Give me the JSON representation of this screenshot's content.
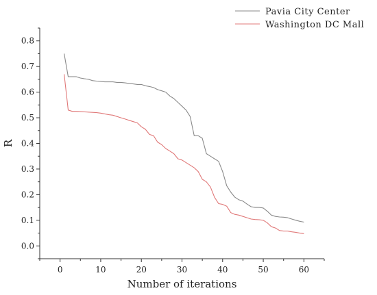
{
  "chart_data": {
    "type": "line",
    "xlabel": "Number of iterations",
    "ylabel": "R",
    "xlim": [
      -5,
      65
    ],
    "ylim": [
      -0.05,
      0.85
    ],
    "x_ticks": [
      0,
      10,
      20,
      30,
      40,
      50,
      60
    ],
    "y_ticks": [
      0.0,
      0.1,
      0.2,
      0.3,
      0.4,
      0.5,
      0.6,
      0.7,
      0.8
    ],
    "y_tick_labels": [
      "0.0",
      "0.1",
      "0.2",
      "0.3",
      "0.4",
      "0.5",
      "0.6",
      "0.7",
      "0.8"
    ],
    "grid": false,
    "legend_position": "top-right, outside plot",
    "series": [
      {
        "name": "Pavia City Center",
        "color": "#8a8a8a",
        "points": [
          [
            1,
            0.75
          ],
          [
            2,
            0.66
          ],
          [
            3,
            0.66
          ],
          [
            4,
            0.66
          ],
          [
            5,
            0.655
          ],
          [
            6,
            0.652
          ],
          [
            7,
            0.65
          ],
          [
            8,
            0.645
          ],
          [
            9,
            0.643
          ],
          [
            10,
            0.642
          ],
          [
            11,
            0.64
          ],
          [
            12,
            0.64
          ],
          [
            13,
            0.64
          ],
          [
            14,
            0.638
          ],
          [
            15,
            0.638
          ],
          [
            16,
            0.636
          ],
          [
            17,
            0.634
          ],
          [
            18,
            0.632
          ],
          [
            19,
            0.63
          ],
          [
            20,
            0.63
          ],
          [
            21,
            0.625
          ],
          [
            22,
            0.622
          ],
          [
            23,
            0.618
          ],
          [
            24,
            0.61
          ],
          [
            25,
            0.605
          ],
          [
            26,
            0.6
          ],
          [
            27,
            0.585
          ],
          [
            28,
            0.575
          ],
          [
            29,
            0.56
          ],
          [
            30,
            0.545
          ],
          [
            31,
            0.53
          ],
          [
            32,
            0.505
          ],
          [
            33,
            0.43
          ],
          [
            34,
            0.43
          ],
          [
            35,
            0.42
          ],
          [
            36,
            0.36
          ],
          [
            37,
            0.35
          ],
          [
            38,
            0.34
          ],
          [
            39,
            0.33
          ],
          [
            40,
            0.29
          ],
          [
            41,
            0.235
          ],
          [
            42,
            0.21
          ],
          [
            43,
            0.19
          ],
          [
            44,
            0.18
          ],
          [
            45,
            0.175
          ],
          [
            46,
            0.163
          ],
          [
            47,
            0.153
          ],
          [
            48,
            0.15
          ],
          [
            49,
            0.15
          ],
          [
            50,
            0.148
          ],
          [
            51,
            0.135
          ],
          [
            52,
            0.12
          ],
          [
            53,
            0.115
          ],
          [
            54,
            0.113
          ],
          [
            55,
            0.112
          ],
          [
            56,
            0.11
          ],
          [
            57,
            0.105
          ],
          [
            58,
            0.1
          ],
          [
            59,
            0.096
          ],
          [
            60,
            0.093
          ]
        ]
      },
      {
        "name": "Washington DC Mall",
        "color": "#e07878",
        "points": [
          [
            1,
            0.67
          ],
          [
            2,
            0.53
          ],
          [
            3,
            0.525
          ],
          [
            4,
            0.525
          ],
          [
            5,
            0.524
          ],
          [
            6,
            0.523
          ],
          [
            7,
            0.522
          ],
          [
            8,
            0.521
          ],
          [
            9,
            0.52
          ],
          [
            10,
            0.518
          ],
          [
            11,
            0.515
          ],
          [
            12,
            0.512
          ],
          [
            13,
            0.51
          ],
          [
            14,
            0.505
          ],
          [
            15,
            0.5
          ],
          [
            16,
            0.495
          ],
          [
            17,
            0.49
          ],
          [
            18,
            0.485
          ],
          [
            19,
            0.48
          ],
          [
            20,
            0.465
          ],
          [
            21,
            0.455
          ],
          [
            22,
            0.435
          ],
          [
            23,
            0.43
          ],
          [
            24,
            0.405
          ],
          [
            25,
            0.395
          ],
          [
            26,
            0.38
          ],
          [
            27,
            0.37
          ],
          [
            28,
            0.36
          ],
          [
            29,
            0.34
          ],
          [
            30,
            0.335
          ],
          [
            31,
            0.325
          ],
          [
            32,
            0.315
          ],
          [
            33,
            0.305
          ],
          [
            34,
            0.29
          ],
          [
            35,
            0.26
          ],
          [
            36,
            0.25
          ],
          [
            37,
            0.23
          ],
          [
            38,
            0.19
          ],
          [
            39,
            0.165
          ],
          [
            40,
            0.162
          ],
          [
            41,
            0.155
          ],
          [
            42,
            0.13
          ],
          [
            43,
            0.123
          ],
          [
            44,
            0.12
          ],
          [
            45,
            0.115
          ],
          [
            46,
            0.11
          ],
          [
            47,
            0.105
          ],
          [
            48,
            0.103
          ],
          [
            49,
            0.102
          ],
          [
            50,
            0.1
          ],
          [
            51,
            0.09
          ],
          [
            52,
            0.075
          ],
          [
            53,
            0.07
          ],
          [
            54,
            0.06
          ],
          [
            55,
            0.058
          ],
          [
            56,
            0.058
          ],
          [
            57,
            0.055
          ],
          [
            58,
            0.053
          ],
          [
            59,
            0.05
          ],
          [
            60,
            0.048
          ]
        ]
      }
    ]
  }
}
